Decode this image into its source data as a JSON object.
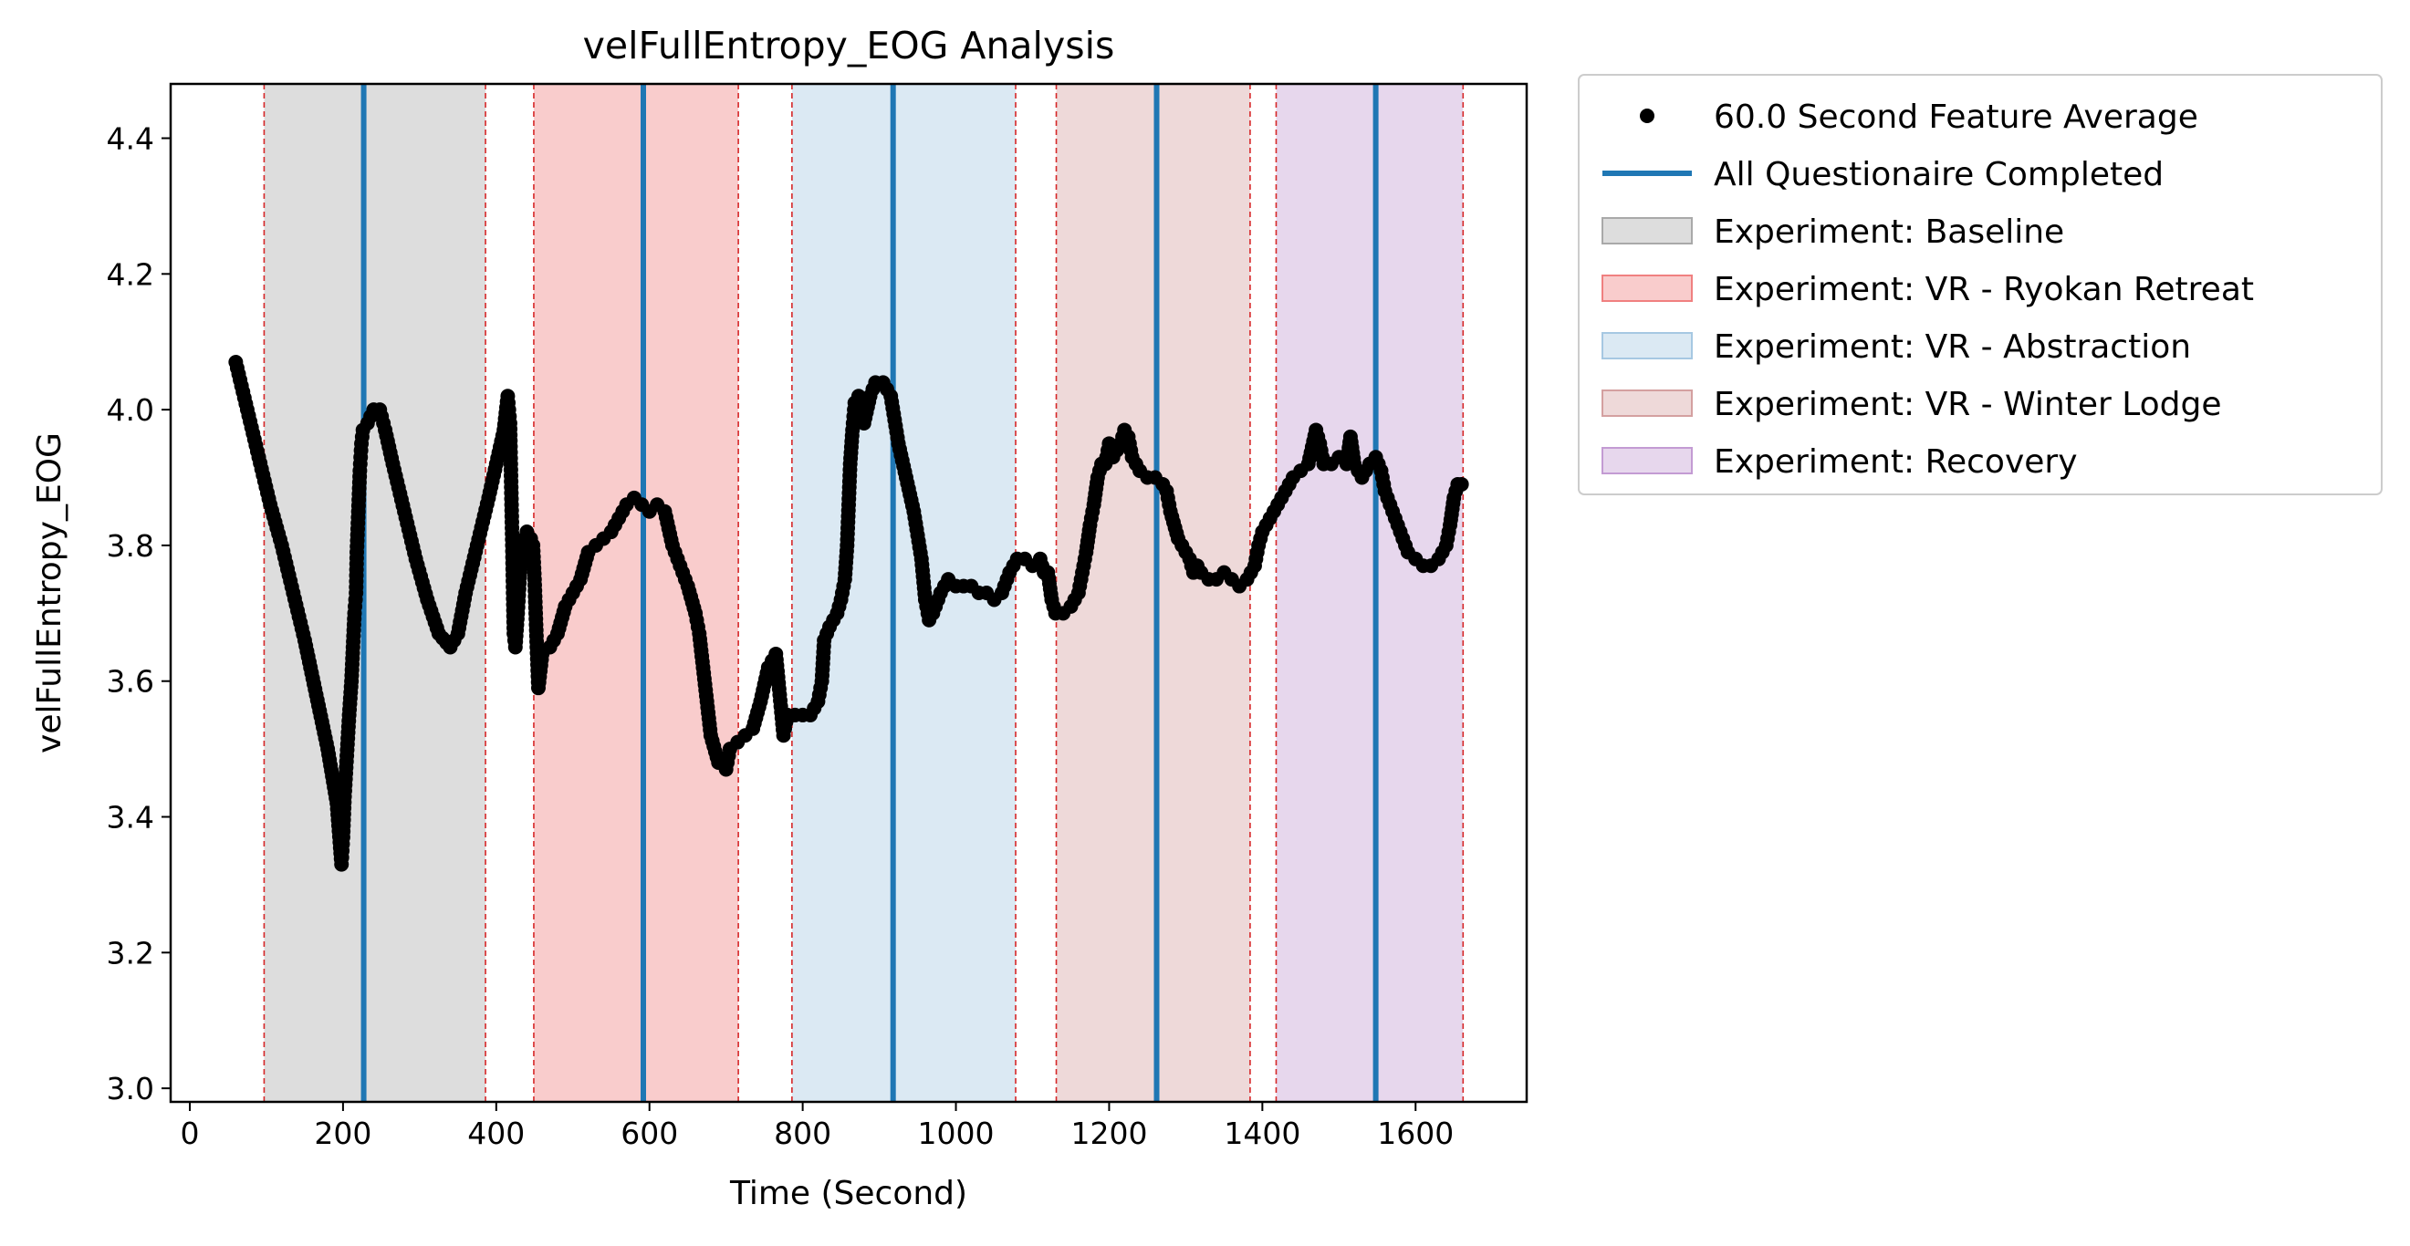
{
  "colors": {
    "points": "#000000",
    "questionnaire_line": "#1f77b4",
    "boundary_line": "#d62728",
    "phase_baseline": "#a9a9a9",
    "phase_ryokan": "#f08080",
    "phase_abstraction": "#a6c8e2",
    "phase_winter": "#d4a0a0",
    "phase_recovery": "#c39bd3"
  },
  "chart_data": {
    "type": "scatter",
    "title": "velFullEntropy_EOG Analysis",
    "xlabel": "Time (Second)",
    "ylabel": "velFullEntropy_EOG",
    "xlim": [
      -25,
      1745
    ],
    "ylim": [
      2.98,
      4.48
    ],
    "x_ticks": [
      0,
      200,
      400,
      600,
      800,
      1000,
      1200,
      1400,
      1600
    ],
    "y_ticks": [
      3.0,
      3.2,
      3.4,
      3.6,
      3.8,
      4.0,
      4.2,
      4.4
    ],
    "grid": false,
    "legend_position": "outside-right",
    "legend": [
      {
        "label": "60.0 Second Feature Average",
        "kind": "marker",
        "color": "#000000"
      },
      {
        "label": "All Questionaire Completed",
        "kind": "line",
        "color": "#1f77b4"
      },
      {
        "label": "Experiment: Baseline",
        "kind": "patch",
        "color": "#a9a9a9"
      },
      {
        "label": "Experiment: VR - Ryokan Retreat",
        "kind": "patch",
        "color": "#f08080"
      },
      {
        "label": "Experiment: VR - Abstraction",
        "kind": "patch",
        "color": "#a6c8e2"
      },
      {
        "label": "Experiment: VR - Winter Lodge",
        "kind": "patch",
        "color": "#d4a0a0"
      },
      {
        "label": "Experiment: Recovery",
        "kind": "patch",
        "color": "#c39bd3"
      }
    ],
    "phases": [
      {
        "name": "Experiment: Baseline",
        "start": 97,
        "end": 386,
        "color": "#a9a9a9"
      },
      {
        "name": "Experiment: VR - Ryokan Retreat",
        "start": 449,
        "end": 716,
        "color": "#f08080"
      },
      {
        "name": "Experiment: VR - Abstraction",
        "start": 786,
        "end": 1078,
        "color": "#a6c8e2"
      },
      {
        "name": "Experiment: VR - Winter Lodge",
        "start": 1131,
        "end": 1384,
        "color": "#d4a0a0"
      },
      {
        "name": "Experiment: Recovery",
        "start": 1418,
        "end": 1662,
        "color": "#c39bd3"
      }
    ],
    "questionnaire_times": [
      227,
      592,
      918,
      1262,
      1548
    ],
    "series": [
      {
        "name": "60.0 Second Feature Average",
        "points": [
          [
            60,
            4.07
          ],
          [
            75,
            4.0
          ],
          [
            90,
            3.93
          ],
          [
            105,
            3.86
          ],
          [
            120,
            3.8
          ],
          [
            135,
            3.73
          ],
          [
            150,
            3.66
          ],
          [
            165,
            3.58
          ],
          [
            180,
            3.5
          ],
          [
            192,
            3.42
          ],
          [
            198,
            3.33
          ],
          [
            200,
            3.37
          ],
          [
            202,
            3.43
          ],
          [
            205,
            3.49
          ],
          [
            208,
            3.55
          ],
          [
            211,
            3.6
          ],
          [
            213,
            3.65
          ],
          [
            215,
            3.7
          ],
          [
            217,
            3.73
          ],
          [
            218,
            3.79
          ],
          [
            220,
            3.85
          ],
          [
            222,
            3.91
          ],
          [
            224,
            3.95
          ],
          [
            226,
            3.97
          ],
          [
            232,
            3.98
          ],
          [
            240,
            4.0
          ],
          [
            248,
            4.0
          ],
          [
            255,
            3.97
          ],
          [
            265,
            3.92
          ],
          [
            280,
            3.85
          ],
          [
            295,
            3.78
          ],
          [
            310,
            3.72
          ],
          [
            325,
            3.67
          ],
          [
            340,
            3.65
          ],
          [
            350,
            3.67
          ],
          [
            360,
            3.73
          ],
          [
            375,
            3.8
          ],
          [
            390,
            3.87
          ],
          [
            400,
            3.92
          ],
          [
            410,
            3.97
          ],
          [
            415,
            4.02
          ],
          [
            418,
            3.98
          ],
          [
            419,
            3.92
          ],
          [
            420,
            3.86
          ],
          [
            421,
            3.8
          ],
          [
            422,
            3.73
          ],
          [
            423,
            3.67
          ],
          [
            425,
            3.65
          ],
          [
            428,
            3.7
          ],
          [
            432,
            3.78
          ],
          [
            440,
            3.82
          ],
          [
            445,
            3.81
          ],
          [
            448,
            3.8
          ],
          [
            450,
            3.75
          ],
          [
            453,
            3.65
          ],
          [
            455,
            3.59
          ],
          [
            460,
            3.64
          ],
          [
            470,
            3.65
          ],
          [
            480,
            3.67
          ],
          [
            490,
            3.71
          ],
          [
            500,
            3.73
          ],
          [
            510,
            3.75
          ],
          [
            520,
            3.79
          ],
          [
            530,
            3.8
          ],
          [
            540,
            3.81
          ],
          [
            550,
            3.82
          ],
          [
            560,
            3.84
          ],
          [
            570,
            3.86
          ],
          [
            580,
            3.87
          ],
          [
            590,
            3.86
          ],
          [
            600,
            3.85
          ],
          [
            610,
            3.86
          ],
          [
            620,
            3.85
          ],
          [
            630,
            3.8
          ],
          [
            640,
            3.77
          ],
          [
            650,
            3.74
          ],
          [
            660,
            3.7
          ],
          [
            665,
            3.67
          ],
          [
            670,
            3.62
          ],
          [
            675,
            3.57
          ],
          [
            680,
            3.52
          ],
          [
            690,
            3.48
          ],
          [
            700,
            3.47
          ],
          [
            705,
            3.5
          ],
          [
            715,
            3.51
          ],
          [
            725,
            3.52
          ],
          [
            735,
            3.53
          ],
          [
            745,
            3.57
          ],
          [
            755,
            3.62
          ],
          [
            765,
            3.64
          ],
          [
            770,
            3.58
          ],
          [
            775,
            3.52
          ],
          [
            780,
            3.55
          ],
          [
            790,
            3.55
          ],
          [
            800,
            3.55
          ],
          [
            810,
            3.55
          ],
          [
            820,
            3.57
          ],
          [
            825,
            3.6
          ],
          [
            828,
            3.66
          ],
          [
            835,
            3.68
          ],
          [
            845,
            3.7
          ],
          [
            850,
            3.72
          ],
          [
            855,
            3.75
          ],
          [
            858,
            3.8
          ],
          [
            860,
            3.86
          ],
          [
            862,
            3.92
          ],
          [
            865,
            3.97
          ],
          [
            868,
            4.01
          ],
          [
            873,
            4.02
          ],
          [
            880,
            3.98
          ],
          [
            888,
            4.02
          ],
          [
            895,
            4.04
          ],
          [
            905,
            4.04
          ],
          [
            915,
            4.02
          ],
          [
            925,
            3.95
          ],
          [
            935,
            3.9
          ],
          [
            945,
            3.85
          ],
          [
            955,
            3.78
          ],
          [
            960,
            3.72
          ],
          [
            965,
            3.69
          ],
          [
            970,
            3.7
          ],
          [
            980,
            3.73
          ],
          [
            990,
            3.75
          ],
          [
            1000,
            3.74
          ],
          [
            1010,
            3.74
          ],
          [
            1020,
            3.74
          ],
          [
            1030,
            3.73
          ],
          [
            1040,
            3.73
          ],
          [
            1050,
            3.72
          ],
          [
            1060,
            3.73
          ],
          [
            1070,
            3.76
          ],
          [
            1080,
            3.78
          ],
          [
            1090,
            3.78
          ],
          [
            1100,
            3.77
          ],
          [
            1110,
            3.78
          ],
          [
            1115,
            3.76
          ],
          [
            1120,
            3.76
          ],
          [
            1125,
            3.72
          ],
          [
            1130,
            3.7
          ],
          [
            1140,
            3.7
          ],
          [
            1150,
            3.71
          ],
          [
            1160,
            3.73
          ],
          [
            1165,
            3.76
          ],
          [
            1170,
            3.79
          ],
          [
            1175,
            3.83
          ],
          [
            1180,
            3.86
          ],
          [
            1185,
            3.9
          ],
          [
            1190,
            3.92
          ],
          [
            1195,
            3.92
          ],
          [
            1200,
            3.95
          ],
          [
            1205,
            3.93
          ],
          [
            1210,
            3.94
          ],
          [
            1215,
            3.95
          ],
          [
            1220,
            3.97
          ],
          [
            1225,
            3.96
          ],
          [
            1230,
            3.93
          ],
          [
            1240,
            3.91
          ],
          [
            1250,
            3.9
          ],
          [
            1260,
            3.9
          ],
          [
            1270,
            3.89
          ],
          [
            1275,
            3.88
          ],
          [
            1280,
            3.85
          ],
          [
            1290,
            3.81
          ],
          [
            1300,
            3.79
          ],
          [
            1305,
            3.78
          ],
          [
            1310,
            3.76
          ],
          [
            1315,
            3.77
          ],
          [
            1320,
            3.76
          ],
          [
            1330,
            3.75
          ],
          [
            1340,
            3.75
          ],
          [
            1350,
            3.76
          ],
          [
            1360,
            3.75
          ],
          [
            1370,
            3.74
          ],
          [
            1380,
            3.75
          ],
          [
            1390,
            3.77
          ],
          [
            1395,
            3.8
          ],
          [
            1400,
            3.82
          ],
          [
            1410,
            3.84
          ],
          [
            1420,
            3.86
          ],
          [
            1430,
            3.88
          ],
          [
            1440,
            3.9
          ],
          [
            1450,
            3.91
          ],
          [
            1460,
            3.92
          ],
          [
            1470,
            3.97
          ],
          [
            1475,
            3.95
          ],
          [
            1480,
            3.92
          ],
          [
            1490,
            3.92
          ],
          [
            1500,
            3.93
          ],
          [
            1510,
            3.92
          ],
          [
            1515,
            3.96
          ],
          [
            1520,
            3.92
          ],
          [
            1530,
            3.9
          ],
          [
            1540,
            3.92
          ],
          [
            1548,
            3.93
          ],
          [
            1555,
            3.91
          ],
          [
            1560,
            3.88
          ],
          [
            1570,
            3.85
          ],
          [
            1580,
            3.82
          ],
          [
            1590,
            3.79
          ],
          [
            1600,
            3.78
          ],
          [
            1610,
            3.77
          ],
          [
            1620,
            3.77
          ],
          [
            1630,
            3.78
          ],
          [
            1640,
            3.8
          ],
          [
            1645,
            3.83
          ],
          [
            1650,
            3.87
          ],
          [
            1655,
            3.89
          ],
          [
            1660,
            3.89
          ]
        ]
      }
    ]
  }
}
